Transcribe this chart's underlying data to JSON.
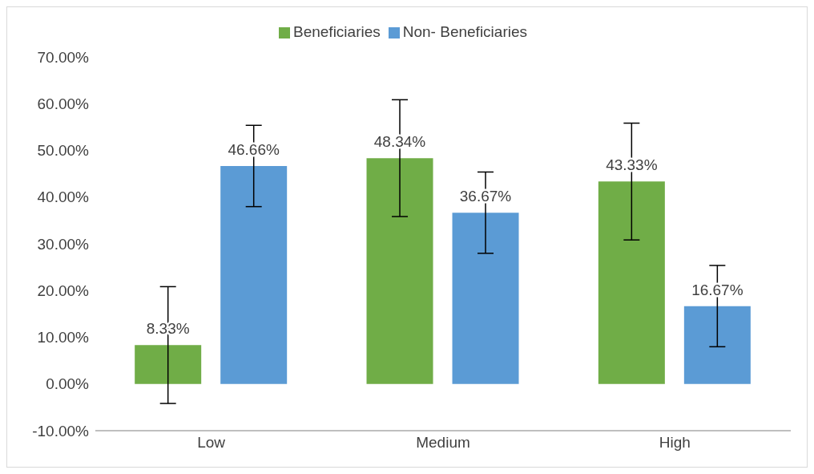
{
  "chart_data": {
    "type": "bar",
    "categories": [
      "Low",
      "Medium",
      "High"
    ],
    "series": [
      {
        "name": "Beneficiaries",
        "color": "#70ad47",
        "values": [
          8.33,
          48.34,
          43.33
        ],
        "errors": [
          12.5,
          12.5,
          12.5
        ],
        "value_labels": [
          "8.33%",
          "48.34%",
          "43.33%"
        ]
      },
      {
        "name": "Non- Beneficiaries",
        "color": "#5b9bd5",
        "values": [
          46.66,
          36.67,
          16.67
        ],
        "errors": [
          8.7,
          8.7,
          8.7
        ],
        "value_labels": [
          "46.66%",
          "36.67%",
          "16.67%"
        ]
      }
    ],
    "ylim": [
      -10,
      70
    ],
    "yticks": [
      {
        "value": -10,
        "label": "-10.00%"
      },
      {
        "value": 0,
        "label": "0.00%"
      },
      {
        "value": 10,
        "label": "10.00%"
      },
      {
        "value": 20,
        "label": "20.00%"
      },
      {
        "value": 30,
        "label": "30.00%"
      },
      {
        "value": 40,
        "label": "40.00%"
      },
      {
        "value": 50,
        "label": "50.00%"
      },
      {
        "value": 60,
        "label": "60.00%"
      },
      {
        "value": 70,
        "label": "70.00%"
      }
    ],
    "grid": false,
    "legend": "top"
  }
}
